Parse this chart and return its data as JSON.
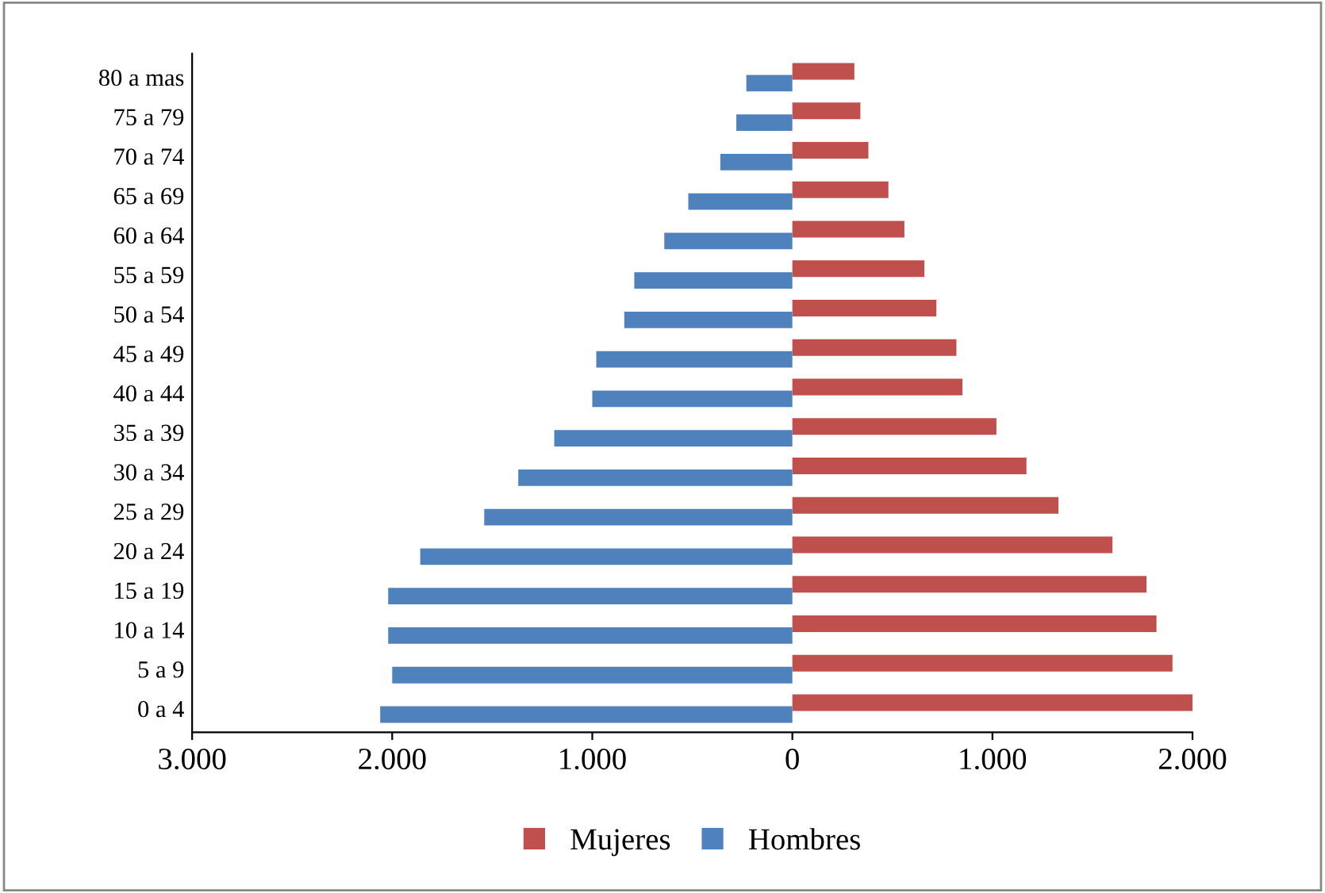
{
  "chart_data": {
    "type": "bar",
    "orientation": "horizontal",
    "categories": [
      "80 a mas",
      "75 a 79",
      "70 a 74",
      "65 a 69",
      "60 a 64",
      "55 a 59",
      "50 a 54",
      "45 a 49",
      "40 a 44",
      "35 a 39",
      "30 a 34",
      "25 a 29",
      "20 a 24",
      "15 a 19",
      "10 a 14",
      "5 a 9",
      "0 a 4"
    ],
    "series": [
      {
        "name": "Mujeres",
        "color": "#c0504d",
        "values": [
          310,
          340,
          380,
          480,
          560,
          660,
          720,
          820,
          850,
          1020,
          1170,
          1330,
          1600,
          1770,
          1820,
          1900,
          2000
        ]
      },
      {
        "name": "Hombres",
        "color": "#4f81bd",
        "values": [
          -230,
          -280,
          -360,
          -520,
          -640,
          -790,
          -840,
          -980,
          -1000,
          -1190,
          -1370,
          -1540,
          -1860,
          -2020,
          -2020,
          -2000,
          -2060
        ]
      }
    ],
    "xlim": [
      -3000,
      2000
    ],
    "xticks": [
      {
        "value": -3000,
        "label": "3.000"
      },
      {
        "value": -2000,
        "label": "2.000"
      },
      {
        "value": -1000,
        "label": "1.000"
      },
      0,
      {
        "value": 1000,
        "label": "1.000"
      },
      {
        "value": 2000,
        "label": "2.000"
      }
    ],
    "grid": false,
    "legend": "bottom"
  }
}
